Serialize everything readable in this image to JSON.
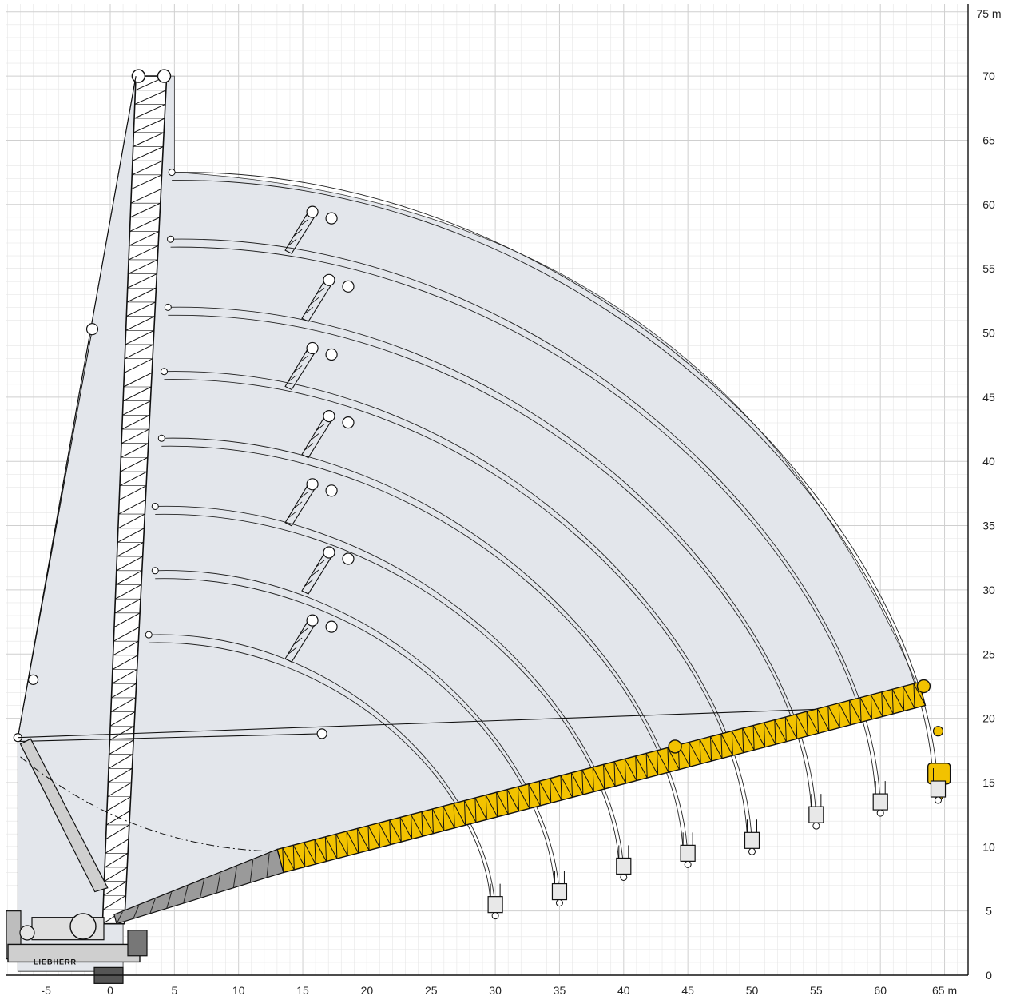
{
  "diagram": {
    "type": "crane-working-range",
    "brand_text": "LIEBHERR",
    "x_axis": {
      "range": [
        -8,
        67
      ],
      "ticks": [
        -5,
        0,
        5,
        10,
        15,
        20,
        25,
        30,
        35,
        40,
        45,
        50,
        55,
        60
      ],
      "tick_labels": [
        "-5",
        "0",
        "5",
        "10",
        "15",
        "20",
        "25",
        "30",
        "35",
        "40",
        "45",
        "50",
        "55",
        "60"
      ],
      "end_label": "65 m"
    },
    "y_axis": {
      "range": [
        0,
        76
      ],
      "ticks": [
        0,
        5,
        10,
        15,
        20,
        25,
        30,
        35,
        40,
        45,
        50,
        55,
        60,
        65,
        70
      ],
      "tick_labels": [
        "0",
        "5",
        "10",
        "15",
        "20",
        "25",
        "30",
        "35",
        "40",
        "45",
        "50",
        "55",
        "60",
        "65",
        "70"
      ],
      "end_label": "75 m"
    },
    "colors": {
      "envelope": "#e3e6eb",
      "boom_yellow": "#f2c200",
      "boom_grey": "#9a9a9a",
      "tower": "#ffffff",
      "outline": "#111111"
    },
    "jib_length_positions": [
      {
        "tip_x": 3,
        "tip_y": 26.5,
        "hook_x": 30,
        "hook_y": 5
      },
      {
        "tip_x": 3.5,
        "tip_y": 31.5,
        "hook_x": 35,
        "hook_y": 6
      },
      {
        "tip_x": 3.5,
        "tip_y": 36.5,
        "hook_x": 40,
        "hook_y": 8
      },
      {
        "tip_x": 4,
        "tip_y": 41.8,
        "hook_x": 45,
        "hook_y": 9
      },
      {
        "tip_x": 4.2,
        "tip_y": 47,
        "hook_x": 50,
        "hook_y": 10
      },
      {
        "tip_x": 4.5,
        "tip_y": 52,
        "hook_x": 55,
        "hook_y": 12
      },
      {
        "tip_x": 4.7,
        "tip_y": 57.3,
        "hook_x": 60,
        "hook_y": 13
      },
      {
        "tip_x": 4.8,
        "tip_y": 62.5,
        "hook_x": 64.5,
        "hook_y": 14
      }
    ]
  }
}
